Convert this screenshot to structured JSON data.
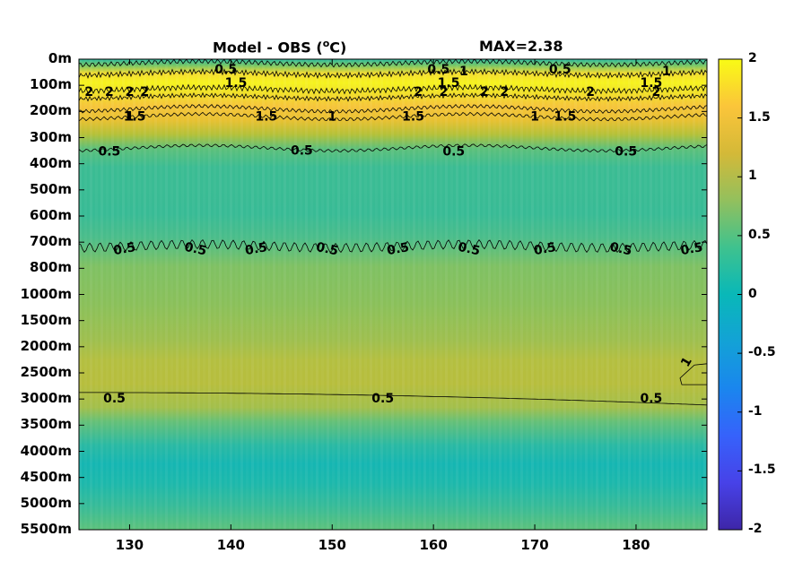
{
  "title_left": "Model - OBS (",
  "title_deg": "o",
  "title_unit": "C)",
  "title_max": "MAX=2.38",
  "chart_data": {
    "type": "heatmap",
    "title": "Model - OBS (oC)",
    "annotation": "MAX=2.38",
    "x_ticks": [
      130,
      140,
      150,
      160,
      170,
      180
    ],
    "xlim": [
      125,
      187
    ],
    "y_ticks": [
      "0m",
      "100m",
      "200m",
      "300m",
      "400m",
      "500m",
      "600m",
      "700m",
      "800m",
      "1000m",
      "1500m",
      "2000m",
      "2500m",
      "3000m",
      "3500m",
      "4000m",
      "4500m",
      "5000m",
      "5500m"
    ],
    "y_reversed": true,
    "colorbar": {
      "ticks": [
        "2",
        "1.5",
        "1",
        "0.5",
        "0",
        "-0.5",
        "-1",
        "-1.5",
        "-2"
      ],
      "range": [
        -2,
        2
      ],
      "colormap": "parula"
    },
    "depth_profile": [
      {
        "depth": "0m",
        "value": 0.2
      },
      {
        "depth": "100m",
        "value": 2.1
      },
      {
        "depth": "200m",
        "value": 1.6
      },
      {
        "depth": "300m",
        "value": 0.7
      },
      {
        "depth": "400m",
        "value": 0.3
      },
      {
        "depth": "500m",
        "value": 0.3
      },
      {
        "depth": "600m",
        "value": 0.35
      },
      {
        "depth": "700m",
        "value": 0.5
      },
      {
        "depth": "800m",
        "value": 0.55
      },
      {
        "depth": "1000m",
        "value": 0.6
      },
      {
        "depth": "1500m",
        "value": 0.75
      },
      {
        "depth": "2000m",
        "value": 0.9
      },
      {
        "depth": "2500m",
        "value": 0.8
      },
      {
        "depth": "3000m",
        "value": 0.45
      },
      {
        "depth": "3500m",
        "value": 0.2
      },
      {
        "depth": "4000m",
        "value": 0.05
      },
      {
        "depth": "4500m",
        "value": 0.2
      },
      {
        "depth": "5000m",
        "value": 0.3
      },
      {
        "depth": "5500m",
        "value": 0.4
      }
    ],
    "contour_labels": [
      {
        "text": "0.5",
        "x": 139.5,
        "depth": "0m"
      },
      {
        "text": "1.5",
        "x": 140.5,
        "depth": "100m"
      },
      {
        "text": "2",
        "x": 126,
        "depth": "100m"
      },
      {
        "text": "2",
        "x": 128,
        "depth": "100m"
      },
      {
        "text": "2",
        "x": 130,
        "depth": "100m"
      },
      {
        "text": "2",
        "x": 131.5,
        "depth": "100m"
      },
      {
        "text": "1.5",
        "x": 130.5,
        "depth": "200m"
      },
      {
        "text": "1",
        "x": 130,
        "depth": "200m"
      },
      {
        "text": "1.5",
        "x": 143.5,
        "depth": "200m"
      },
      {
        "text": "1",
        "x": 150,
        "depth": "200m"
      },
      {
        "text": "0.5",
        "x": 128,
        "depth": "300m"
      },
      {
        "text": "0.5",
        "x": 147,
        "depth": "400m"
      },
      {
        "text": "0.5",
        "x": 160.5,
        "depth": "0m"
      },
      {
        "text": "1",
        "x": 163,
        "depth": "0m"
      },
      {
        "text": "1.5",
        "x": 161.5,
        "depth": "100m"
      },
      {
        "text": "2",
        "x": 158.5,
        "depth": "100m"
      },
      {
        "text": "2",
        "x": 161,
        "depth": "100m"
      },
      {
        "text": "2",
        "x": 165,
        "depth": "100m"
      },
      {
        "text": "2",
        "x": 167,
        "depth": "100m"
      },
      {
        "text": "1.5",
        "x": 158,
        "depth": "200m"
      },
      {
        "text": "0.5",
        "x": 162,
        "depth": "300m"
      },
      {
        "text": "0.5",
        "x": 172.5,
        "depth": "0m"
      },
      {
        "text": "1.5",
        "x": 173,
        "depth": "200m"
      },
      {
        "text": "1",
        "x": 170,
        "depth": "200m"
      },
      {
        "text": "0.5",
        "x": 179,
        "depth": "300m"
      },
      {
        "text": "2",
        "x": 175.5,
        "depth": "100m"
      },
      {
        "text": "1",
        "x": 183,
        "depth": "0m"
      },
      {
        "text": "1.5",
        "x": 181.5,
        "depth": "100m"
      },
      {
        "text": "2",
        "x": 182,
        "depth": "100m"
      },
      {
        "text": "0.5",
        "x": 129.5,
        "depth": "700m"
      },
      {
        "text": "0.5",
        "x": 136.5,
        "depth": "700m"
      },
      {
        "text": "0.5",
        "x": 142.5,
        "depth": "700m"
      },
      {
        "text": "0.5",
        "x": 149.5,
        "depth": "700m"
      },
      {
        "text": "0.5",
        "x": 156.5,
        "depth": "700m"
      },
      {
        "text": "0.5",
        "x": 163.5,
        "depth": "700m"
      },
      {
        "text": "0.5",
        "x": 171,
        "depth": "700m"
      },
      {
        "text": "0.5",
        "x": 178.5,
        "depth": "700m"
      },
      {
        "text": "0.5",
        "x": 185.5,
        "depth": "700m"
      },
      {
        "text": "1",
        "x": 185,
        "depth": "2500m"
      },
      {
        "text": "0.5",
        "x": 128.5,
        "depth": "3000m"
      },
      {
        "text": "0.5",
        "x": 155,
        "depth": "3000m"
      },
      {
        "text": "0.5",
        "x": 181.5,
        "depth": "3000m"
      }
    ]
  }
}
